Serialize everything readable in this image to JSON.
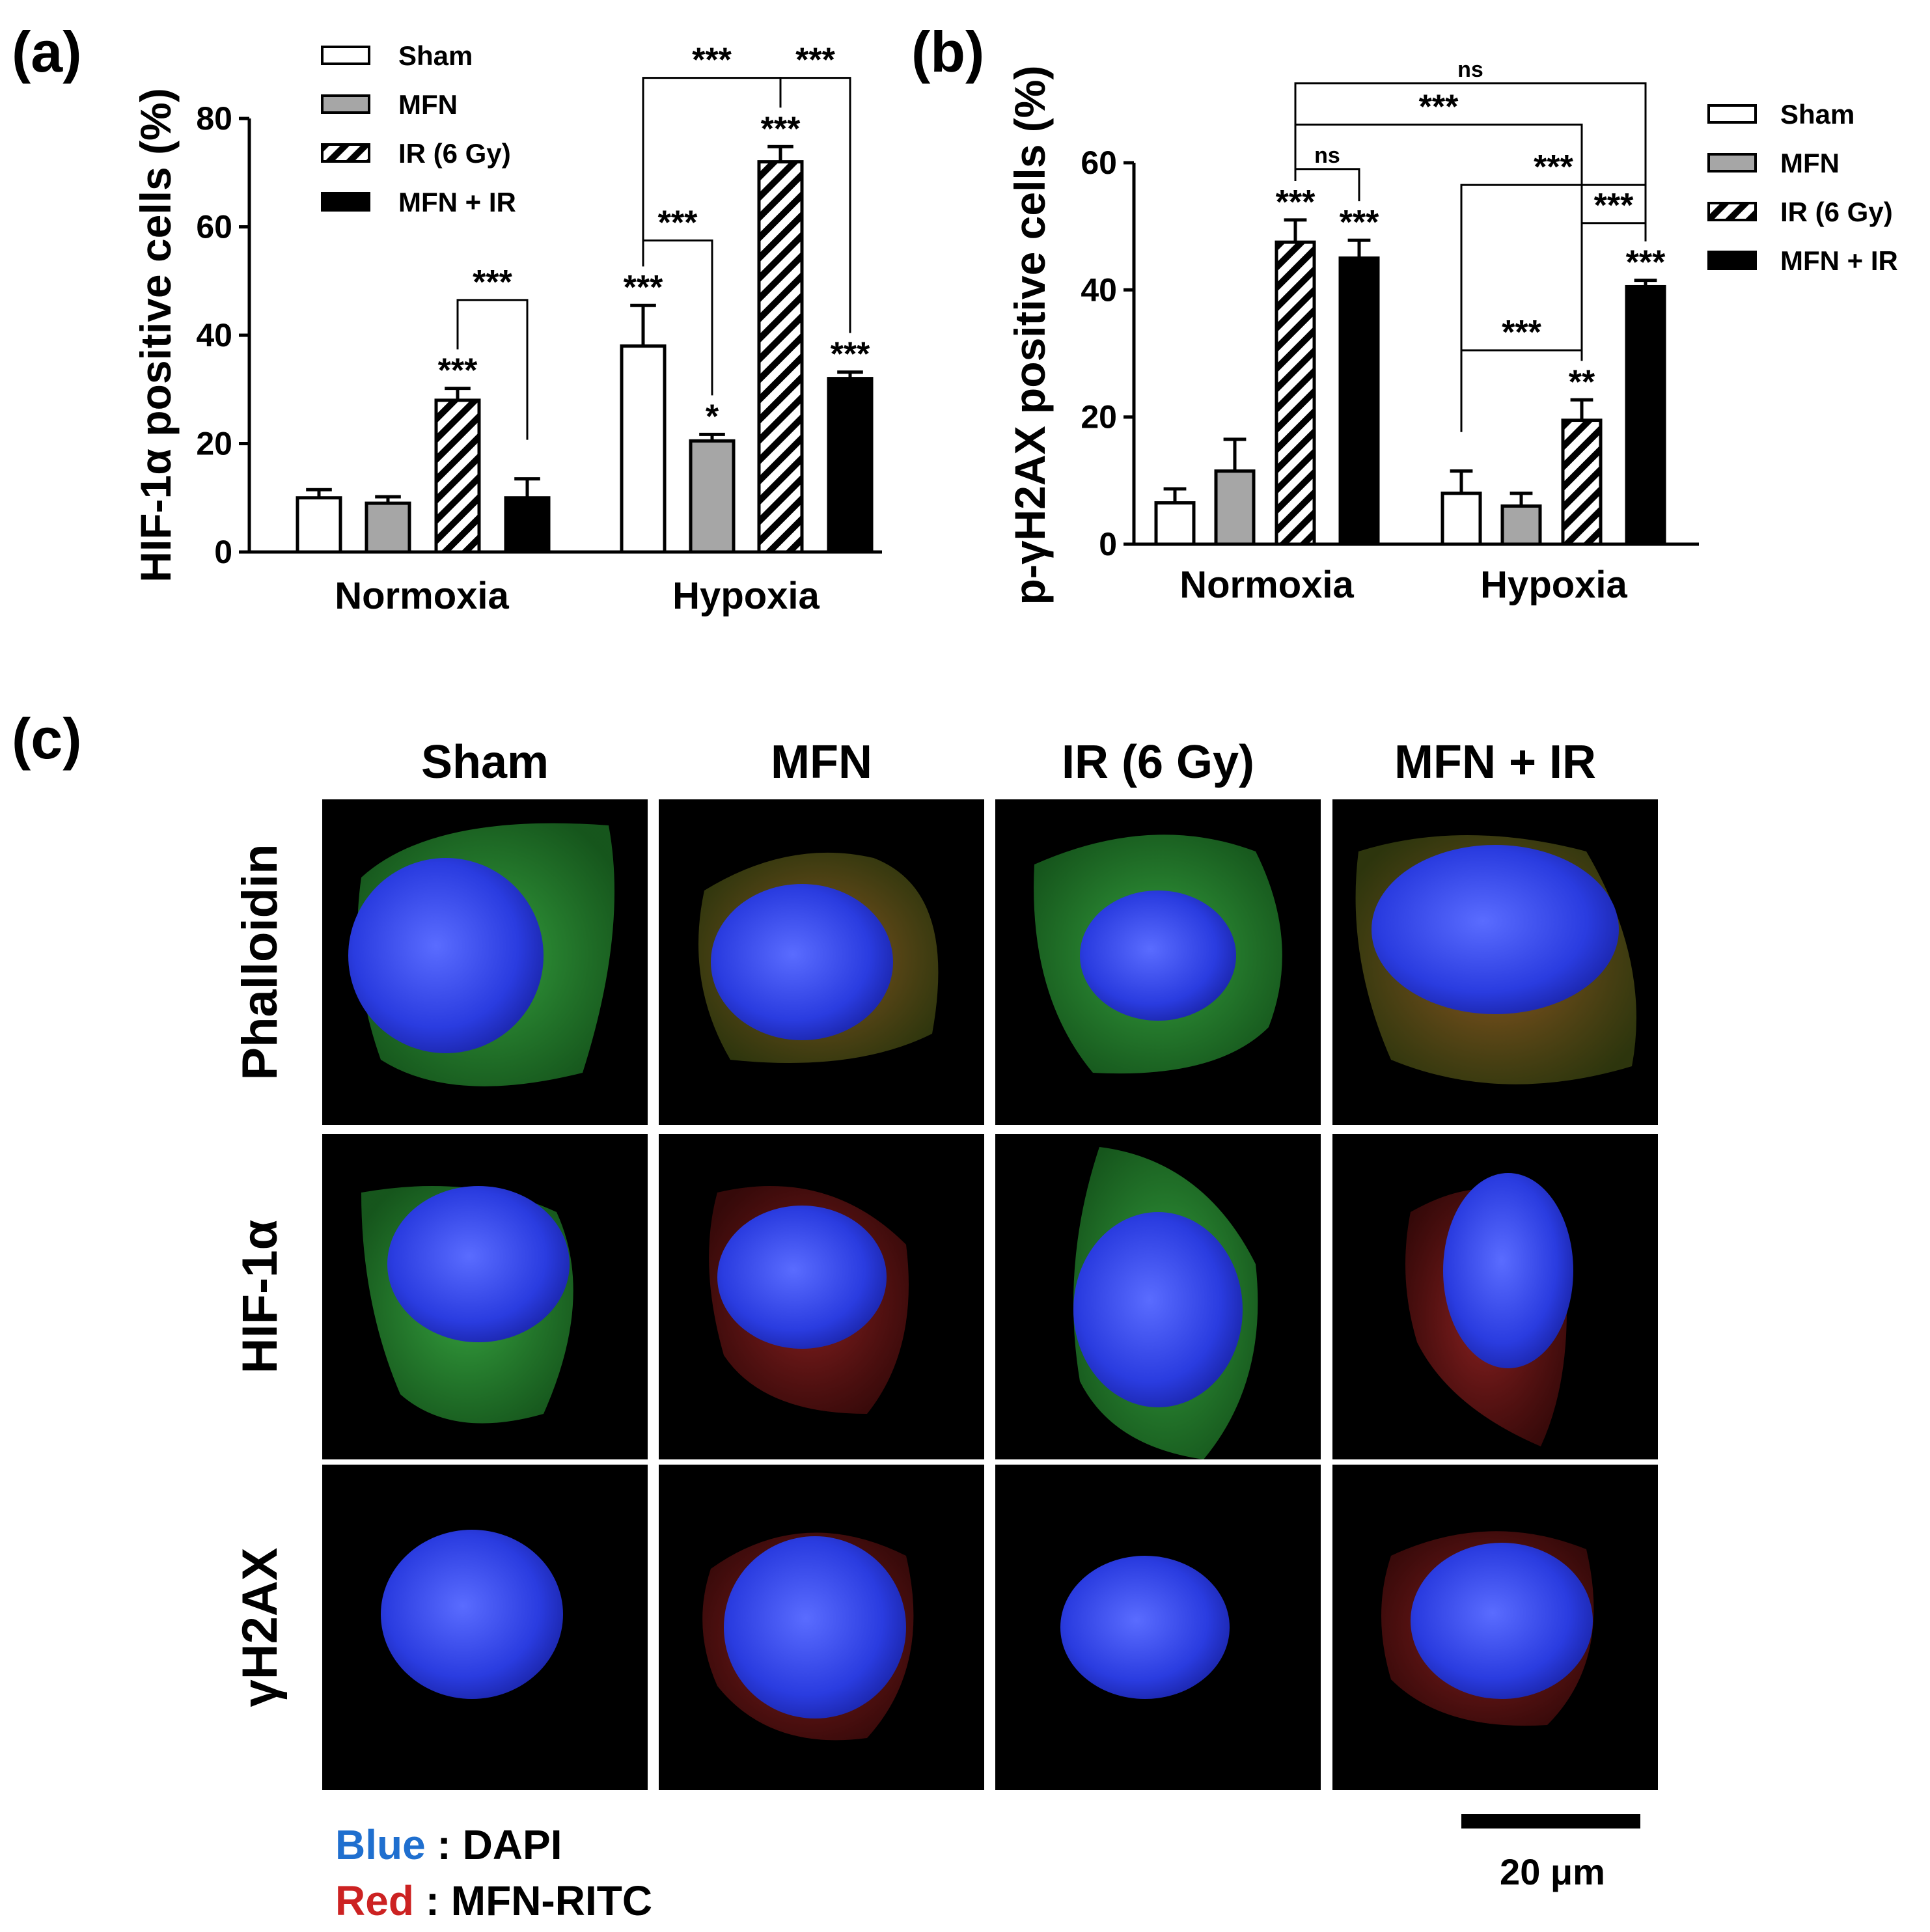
{
  "panels": {
    "a": {
      "letter": "(a)"
    },
    "b": {
      "letter": "(b)"
    },
    "c": {
      "letter": "(c)"
    }
  },
  "chart_data": [
    {
      "type": "bar",
      "id": "a",
      "ylabel": "HIF-1α positive cells (%)",
      "xlabel": "",
      "ylim": [
        0,
        80
      ],
      "yticks": [
        0,
        20,
        40,
        60,
        80
      ],
      "categories": [
        "Normoxia",
        "Hypoxia"
      ],
      "legend_position": "top-left",
      "series": [
        {
          "name": "Sham",
          "pattern": "white",
          "values": [
            10,
            38
          ],
          "errors": [
            1.5,
            7.5
          ],
          "labels": [
            "",
            "***"
          ]
        },
        {
          "name": "MFN",
          "pattern": "gray",
          "values": [
            9,
            20.5
          ],
          "errors": [
            1.2,
            1.2
          ],
          "labels": [
            "",
            "*"
          ]
        },
        {
          "name": "IR (6 Gy)",
          "pattern": "hatched",
          "values": [
            28,
            72
          ],
          "errors": [
            2.2,
            2.8
          ],
          "labels": [
            "***",
            "***"
          ]
        },
        {
          "name": "MFN + IR",
          "pattern": "black",
          "values": [
            10,
            32
          ],
          "errors": [
            3.5,
            1.2
          ],
          "labels": [
            "",
            "***"
          ]
        }
      ],
      "brackets": [
        {
          "from": [
            0,
            2
          ],
          "to": [
            0,
            3
          ],
          "y": 46.5,
          "label": "***"
        },
        {
          "from": [
            1,
            0
          ],
          "to": [
            1,
            1
          ],
          "y": 57.5,
          "label": "***"
        },
        {
          "from": [
            1,
            0
          ],
          "to": [
            1,
            2
          ],
          "y": 87.5,
          "label": "***"
        },
        {
          "from": [
            1,
            2
          ],
          "to": [
            1,
            3
          ],
          "y": 87.5,
          "label": "***"
        }
      ],
      "colors": {
        "gray": "#a6a6a6",
        "black": "#000000",
        "white": "#ffffff"
      }
    },
    {
      "type": "bar",
      "id": "b",
      "ylabel": "p-γH2AX positive cells (%)",
      "xlabel": "",
      "ylim": [
        0,
        60
      ],
      "yticks": [
        0,
        20,
        40,
        60
      ],
      "categories": [
        "Normoxia",
        "Hypoxia"
      ],
      "legend_position": "right",
      "series": [
        {
          "name": "Sham",
          "pattern": "white",
          "values": [
            6.5,
            8
          ],
          "errors": [
            2.2,
            3.5
          ],
          "labels": [
            "",
            ""
          ]
        },
        {
          "name": "MFN",
          "pattern": "gray",
          "values": [
            11.5,
            6
          ],
          "errors": [
            5,
            2
          ],
          "labels": [
            "",
            ""
          ]
        },
        {
          "name": "IR (6 Gy)",
          "pattern": "hatched",
          "values": [
            47.5,
            19.5
          ],
          "errors": [
            3.5,
            3.2
          ],
          "labels": [
            "***",
            "**"
          ]
        },
        {
          "name": "MFN + IR",
          "pattern": "black",
          "values": [
            45,
            40.5
          ],
          "errors": [
            2.8,
            1
          ],
          "labels": [
            "***",
            "***"
          ]
        }
      ],
      "brackets": [
        {
          "from": [
            0,
            2
          ],
          "to": [
            0,
            3
          ],
          "y": 59,
          "label": "ns"
        },
        {
          "from": [
            0,
            2
          ],
          "to": [
            1,
            2
          ],
          "y": 66,
          "label": "***"
        },
        {
          "from": [
            0,
            2
          ],
          "to": [
            1,
            3
          ],
          "y": 72.5,
          "label": "ns"
        },
        {
          "from": [
            1,
            0
          ],
          "to": [
            1,
            3
          ],
          "y": 56.5,
          "label": "***"
        },
        {
          "from": [
            1,
            2
          ],
          "to": [
            1,
            3
          ],
          "y": 50.5,
          "label": "***"
        },
        {
          "from": [
            1,
            0
          ],
          "to": [
            1,
            2
          ],
          "y": 30.5,
          "label": "***"
        }
      ],
      "colors": {
        "gray": "#a6a6a6",
        "black": "#000000",
        "white": "#ffffff"
      }
    }
  ],
  "microscopy": {
    "columns": [
      "Sham",
      "MFN",
      "IR (6 Gy)",
      "MFN + IR"
    ],
    "rows": [
      "Phalloidin",
      "HIF-1α",
      "γH2AX"
    ],
    "scale_bar": "20 μm",
    "legend": [
      {
        "color_word": "Blue",
        "separator": " : ",
        "text": "DAPI",
        "color": "#1f6fcf"
      },
      {
        "color_word": "Red",
        "separator": " : ",
        "text": "MFN-RITC",
        "color": "#cc2222"
      }
    ],
    "stain_colors": {
      "dapi": "#2a3cf0",
      "green": "#2fb33a",
      "red": "#c22a2a",
      "background": "#000000"
    }
  }
}
